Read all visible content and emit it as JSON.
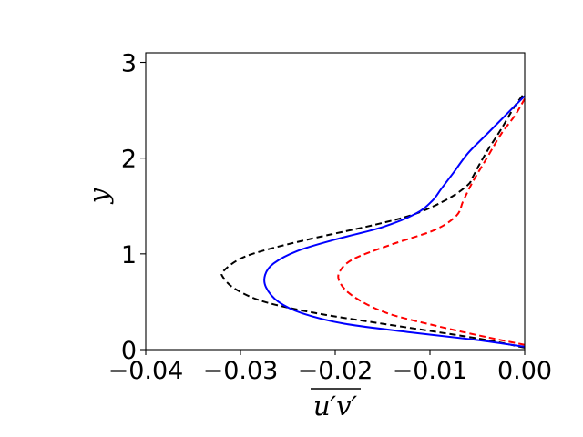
{
  "chart_data": {
    "type": "line",
    "xlabel": "u′v′",
    "ylabel": "y",
    "xlim": [
      -0.04,
      0.0
    ],
    "ylim": [
      0,
      3.1
    ],
    "x_ticks": [
      -0.04,
      -0.03,
      -0.02,
      -0.01,
      0.0
    ],
    "x_tick_labels": [
      "−0.04",
      "−0.03",
      "−0.02",
      "−0.01",
      "0.00"
    ],
    "y_ticks": [
      0,
      1,
      2,
      3
    ],
    "y_tick_labels": [
      "0",
      "1",
      "2",
      "3"
    ],
    "grid": false,
    "legend": "none",
    "series": [
      {
        "color": "#000000",
        "style": "dashed",
        "x": [
          0.0,
          -0.004,
          -0.009,
          -0.015,
          -0.022,
          -0.0275,
          -0.0305,
          -0.0318,
          -0.0318,
          -0.03,
          -0.027,
          -0.022,
          -0.016,
          -0.0115,
          -0.008,
          -0.006,
          -0.0055,
          -0.0048,
          -0.0038,
          -0.0025,
          -0.001,
          0.0
        ],
        "y": [
          0.02,
          0.1,
          0.18,
          0.27,
          0.38,
          0.5,
          0.63,
          0.75,
          0.82,
          0.95,
          1.05,
          1.17,
          1.3,
          1.42,
          1.58,
          1.72,
          1.8,
          1.93,
          2.1,
          2.3,
          2.55,
          2.68
        ]
      },
      {
        "color": "#0000ff",
        "style": "solid",
        "x": [
          0.0,
          -0.005,
          -0.012,
          -0.019,
          -0.0235,
          -0.026,
          -0.0273,
          -0.0274,
          -0.0265,
          -0.024,
          -0.02,
          -0.015,
          -0.0115,
          -0.0098,
          -0.0088,
          -0.0075,
          -0.006,
          -0.004,
          -0.0015,
          0.0
        ],
        "y": [
          0.03,
          0.1,
          0.18,
          0.27,
          0.38,
          0.5,
          0.65,
          0.78,
          0.9,
          1.03,
          1.15,
          1.28,
          1.42,
          1.55,
          1.68,
          1.85,
          2.05,
          2.25,
          2.5,
          2.65
        ]
      },
      {
        "color": "#ff0000",
        "style": "dashed",
        "x": [
          0.0,
          -0.004,
          -0.009,
          -0.0145,
          -0.018,
          -0.0195,
          -0.0195,
          -0.018,
          -0.014,
          -0.0095,
          -0.0072,
          -0.0065,
          -0.0055,
          -0.004,
          -0.0025,
          -0.001,
          0.0
        ],
        "y": [
          0.05,
          0.13,
          0.24,
          0.38,
          0.55,
          0.7,
          0.82,
          0.95,
          1.1,
          1.25,
          1.4,
          1.55,
          1.75,
          2.0,
          2.25,
          2.45,
          2.62
        ]
      }
    ]
  }
}
